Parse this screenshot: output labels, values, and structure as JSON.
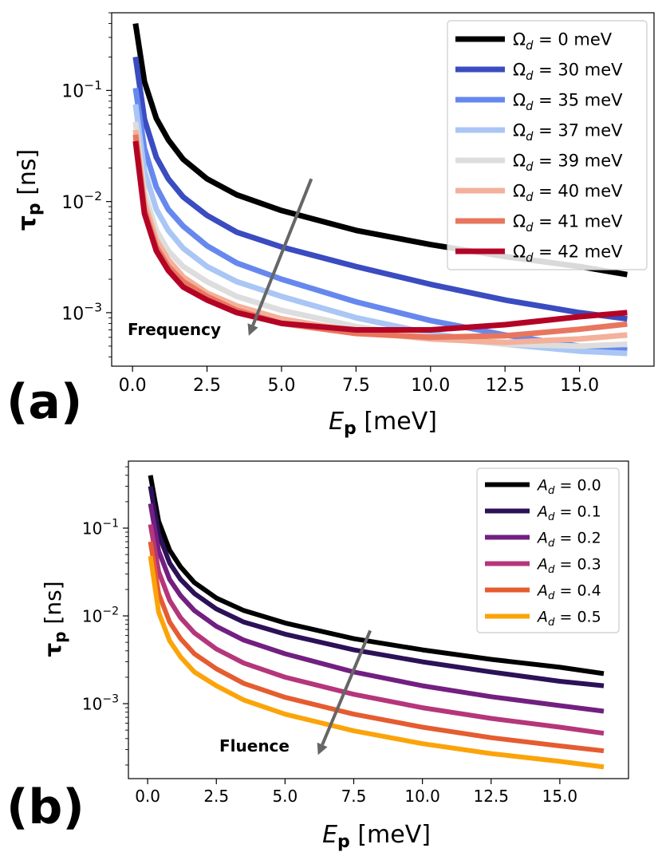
{
  "chart_data": [
    {
      "type": "line",
      "panel_label": "(a)",
      "xlabel_main": "E",
      "xlabel_sub": "p",
      "xlabel_unit": " [meV]",
      "ylabel_main": "τ",
      "ylabel_sub": "p",
      "ylabel_unit": " [ns]",
      "xlim": [
        -0.7,
        17.5
      ],
      "ylim": [
        0.00033,
        0.5
      ],
      "yscale": "log",
      "xticks": [
        0.0,
        2.5,
        5.0,
        7.5,
        10.0,
        12.5,
        15.0
      ],
      "xtick_labels": [
        "0.0",
        "2.5",
        "5.0",
        "7.5",
        "10.0",
        "12.5",
        "15.0"
      ],
      "yticks": [
        0.001,
        0.01,
        0.1
      ],
      "ytick_bases": [
        "10",
        "10",
        "10"
      ],
      "ytick_exps": [
        "−3",
        "−2",
        "−1"
      ],
      "legend_position": "top-right",
      "annotation": {
        "text": "Frequency",
        "arrow_from": [
          6.0,
          0.016
        ],
        "arrow_to": [
          3.9,
          0.00062
        ]
      },
      "series": [
        {
          "name": "Ω",
          "sub": "d",
          "rest": " = 0 meV",
          "color": "#000000",
          "points": [
            [
              0.1,
              0.4
            ],
            [
              0.4,
              0.12
            ],
            [
              0.8,
              0.056
            ],
            [
              1.2,
              0.036
            ],
            [
              1.7,
              0.024
            ],
            [
              2.5,
              0.016
            ],
            [
              3.5,
              0.0115
            ],
            [
              5,
              0.0083
            ],
            [
              7.5,
              0.0055
            ],
            [
              10,
              0.0041
            ],
            [
              12.5,
              0.0032
            ],
            [
              15,
              0.0026
            ],
            [
              16.6,
              0.0022
            ]
          ]
        },
        {
          "name": "Ω",
          "sub": "d",
          "rest": " = 30 meV",
          "color": "#3a4cc0",
          "points": [
            [
              0.1,
              0.2
            ],
            [
              0.4,
              0.055
            ],
            [
              0.8,
              0.025
            ],
            [
              1.2,
              0.016
            ],
            [
              1.7,
              0.011
            ],
            [
              2.5,
              0.0075
            ],
            [
              3.5,
              0.0053
            ],
            [
              5,
              0.0039
            ],
            [
              7.5,
              0.0026
            ],
            [
              10,
              0.0018
            ],
            [
              12.5,
              0.0013
            ],
            [
              15,
              0.001
            ],
            [
              16.6,
              0.00088
            ]
          ]
        },
        {
          "name": "Ω",
          "sub": "d",
          "rest": " = 35 meV",
          "color": "#6688ee",
          "points": [
            [
              0.1,
              0.105
            ],
            [
              0.4,
              0.03
            ],
            [
              0.8,
              0.0135
            ],
            [
              1.2,
              0.0085
            ],
            [
              1.7,
              0.006
            ],
            [
              2.5,
              0.004
            ],
            [
              3.5,
              0.0028
            ],
            [
              5,
              0.002
            ],
            [
              7.5,
              0.00125
            ],
            [
              10,
              0.00085
            ],
            [
              12.5,
              0.00063
            ],
            [
              15,
              0.0005
            ],
            [
              16.6,
              0.00046
            ]
          ]
        },
        {
          "name": "Ω",
          "sub": "d",
          "rest": " = 37 meV",
          "color": "#aac6f5",
          "points": [
            [
              0.1,
              0.075
            ],
            [
              0.4,
              0.019
            ],
            [
              0.8,
              0.0085
            ],
            [
              1.2,
              0.0055
            ],
            [
              1.7,
              0.0038
            ],
            [
              2.5,
              0.0026
            ],
            [
              3.5,
              0.0019
            ],
            [
              5,
              0.0014
            ],
            [
              7.5,
              0.0009
            ],
            [
              10,
              0.00065
            ],
            [
              12.5,
              0.00052
            ],
            [
              15,
              0.00045
            ],
            [
              16.6,
              0.00043
            ]
          ]
        },
        {
          "name": "Ω",
          "sub": "d",
          "rest": " = 39 meV",
          "color": "#dddddd",
          "points": [
            [
              0.1,
              0.052
            ],
            [
              0.4,
              0.012
            ],
            [
              0.8,
              0.0055
            ],
            [
              1.2,
              0.0036
            ],
            [
              1.7,
              0.0026
            ],
            [
              2.5,
              0.0019
            ],
            [
              3.5,
              0.0014
            ],
            [
              5,
              0.00105
            ],
            [
              7.5,
              0.00075
            ],
            [
              10,
              0.0006
            ],
            [
              12.5,
              0.00052
            ],
            [
              15,
              0.0005
            ],
            [
              16.6,
              0.00052
            ]
          ]
        },
        {
          "name": "Ω",
          "sub": "d",
          "rest": " = 40 meV",
          "color": "#f4b09a",
          "points": [
            [
              0.1,
              0.044
            ],
            [
              0.4,
              0.01
            ],
            [
              0.8,
              0.0045
            ],
            [
              1.2,
              0.003
            ],
            [
              1.7,
              0.0021
            ],
            [
              2.5,
              0.0015
            ],
            [
              3.5,
              0.00115
            ],
            [
              5,
              0.00088
            ],
            [
              7.5,
              0.00068
            ],
            [
              10,
              0.00058
            ],
            [
              12.5,
              0.00054
            ],
            [
              15,
              0.00058
            ],
            [
              16.6,
              0.00063
            ]
          ]
        },
        {
          "name": "Ω",
          "sub": "d",
          "rest": " = 41 meV",
          "color": "#e8765e",
          "points": [
            [
              0.1,
              0.04
            ],
            [
              0.4,
              0.0085
            ],
            [
              0.8,
              0.0039
            ],
            [
              1.2,
              0.0026
            ],
            [
              1.7,
              0.0019
            ],
            [
              2.5,
              0.0014
            ],
            [
              3.5,
              0.00105
            ],
            [
              5,
              0.0008
            ],
            [
              7.5,
              0.00065
            ],
            [
              10,
              0.0006
            ],
            [
              12.5,
              0.00062
            ],
            [
              15,
              0.00071
            ],
            [
              16.6,
              0.00079
            ]
          ]
        },
        {
          "name": "Ω",
          "sub": "d",
          "rest": " = 42 meV",
          "color": "#b40426",
          "points": [
            [
              0.1,
              0.035
            ],
            [
              0.4,
              0.0078
            ],
            [
              0.8,
              0.0036
            ],
            [
              1.2,
              0.0024
            ],
            [
              1.7,
              0.0017
            ],
            [
              2.5,
              0.0013
            ],
            [
              3.5,
              0.001
            ],
            [
              5,
              0.0008
            ],
            [
              7.5,
              0.0007
            ],
            [
              10,
              0.0007
            ],
            [
              12.5,
              0.00078
            ],
            [
              15,
              0.00092
            ],
            [
              16.6,
              0.001
            ]
          ]
        }
      ]
    },
    {
      "type": "line",
      "panel_label": "(b)",
      "xlabel_main": "E",
      "xlabel_sub": "p",
      "xlabel_unit": " [meV]",
      "ylabel_main": "τ",
      "ylabel_sub": "p",
      "ylabel_unit": " [ns]",
      "xlim": [
        -0.7,
        17.5
      ],
      "ylim": [
        0.00014,
        0.58
      ],
      "yscale": "log",
      "xticks": [
        0.0,
        2.5,
        5.0,
        7.5,
        10.0,
        12.5,
        15.0
      ],
      "xtick_labels": [
        "0.0",
        "2.5",
        "5.0",
        "7.5",
        "10.0",
        "12.5",
        "15.0"
      ],
      "yticks": [
        0.001,
        0.01,
        0.1
      ],
      "ytick_bases": [
        "10",
        "10",
        "10"
      ],
      "ytick_exps": [
        "−3",
        "−2",
        "−1"
      ],
      "legend_position": "top-right",
      "annotation": {
        "text": "Fluence",
        "arrow_from": [
          8.1,
          0.0068
        ],
        "arrow_to": [
          6.2,
          0.00026
        ]
      },
      "series": [
        {
          "name": "A",
          "sub": "d",
          "rest": " = 0.0",
          "color": "#000000",
          "points": [
            [
              0.1,
              0.4
            ],
            [
              0.4,
              0.12
            ],
            [
              0.8,
              0.056
            ],
            [
              1.2,
              0.036
            ],
            [
              1.7,
              0.024
            ],
            [
              2.5,
              0.016
            ],
            [
              3.5,
              0.0115
            ],
            [
              5,
              0.0083
            ],
            [
              7.5,
              0.0055
            ],
            [
              10,
              0.0041
            ],
            [
              12.5,
              0.0032
            ],
            [
              15,
              0.0026
            ],
            [
              16.6,
              0.0022
            ]
          ]
        },
        {
          "name": "A",
          "sub": "d",
          "rest": " = 0.1",
          "color": "#2c1158",
          "points": [
            [
              0.1,
              0.3
            ],
            [
              0.4,
              0.085
            ],
            [
              0.8,
              0.04
            ],
            [
              1.2,
              0.026
            ],
            [
              1.7,
              0.018
            ],
            [
              2.5,
              0.012
            ],
            [
              3.5,
              0.0085
            ],
            [
              5,
              0.0062
            ],
            [
              7.5,
              0.0041
            ],
            [
              10,
              0.003
            ],
            [
              12.5,
              0.0023
            ],
            [
              15,
              0.0018
            ],
            [
              16.6,
              0.0016
            ]
          ]
        },
        {
          "name": "A",
          "sub": "d",
          "rest": " = 0.2",
          "color": "#721f81",
          "points": [
            [
              0.1,
              0.19
            ],
            [
              0.4,
              0.055
            ],
            [
              0.8,
              0.026
            ],
            [
              1.2,
              0.017
            ],
            [
              1.7,
              0.0115
            ],
            [
              2.5,
              0.0076
            ],
            [
              3.5,
              0.0053
            ],
            [
              5,
              0.0037
            ],
            [
              7.5,
              0.0023
            ],
            [
              10,
              0.0016
            ],
            [
              12.5,
              0.0012
            ],
            [
              15,
              0.00095
            ],
            [
              16.6,
              0.00082
            ]
          ]
        },
        {
          "name": "A",
          "sub": "d",
          "rest": " = 0.3",
          "color": "#b5367a",
          "points": [
            [
              0.1,
              0.11
            ],
            [
              0.4,
              0.032
            ],
            [
              0.8,
              0.015
            ],
            [
              1.2,
              0.0095
            ],
            [
              1.7,
              0.0064
            ],
            [
              2.5,
              0.0042
            ],
            [
              3.5,
              0.0029
            ],
            [
              5,
              0.002
            ],
            [
              7.5,
              0.00128
            ],
            [
              10,
              0.0009
            ],
            [
              12.5,
              0.00068
            ],
            [
              15,
              0.00054
            ],
            [
              16.6,
              0.00046
            ]
          ]
        },
        {
          "name": "A",
          "sub": "d",
          "rest": " = 0.4",
          "color": "#e55c30",
          "points": [
            [
              0.1,
              0.07
            ],
            [
              0.4,
              0.018
            ],
            [
              0.8,
              0.0085
            ],
            [
              1.2,
              0.0055
            ],
            [
              1.7,
              0.0037
            ],
            [
              2.5,
              0.0025
            ],
            [
              3.5,
              0.0017
            ],
            [
              5,
              0.00118
            ],
            [
              7.5,
              0.00076
            ],
            [
              10,
              0.00054
            ],
            [
              12.5,
              0.00041
            ],
            [
              15,
              0.00033
            ],
            [
              16.6,
              0.00029
            ]
          ]
        },
        {
          "name": "A",
          "sub": "d",
          "rest": " = 0.5",
          "color": "#fba40a",
          "points": [
            [
              0.1,
              0.048
            ],
            [
              0.4,
              0.011
            ],
            [
              0.8,
              0.0052
            ],
            [
              1.2,
              0.0034
            ],
            [
              1.7,
              0.0023
            ],
            [
              2.5,
              0.0016
            ],
            [
              3.5,
              0.0011
            ],
            [
              5,
              0.00076
            ],
            [
              7.5,
              0.00049
            ],
            [
              10,
              0.00035
            ],
            [
              12.5,
              0.00027
            ],
            [
              15,
              0.00022
            ],
            [
              16.6,
              0.00019
            ]
          ]
        }
      ]
    }
  ]
}
